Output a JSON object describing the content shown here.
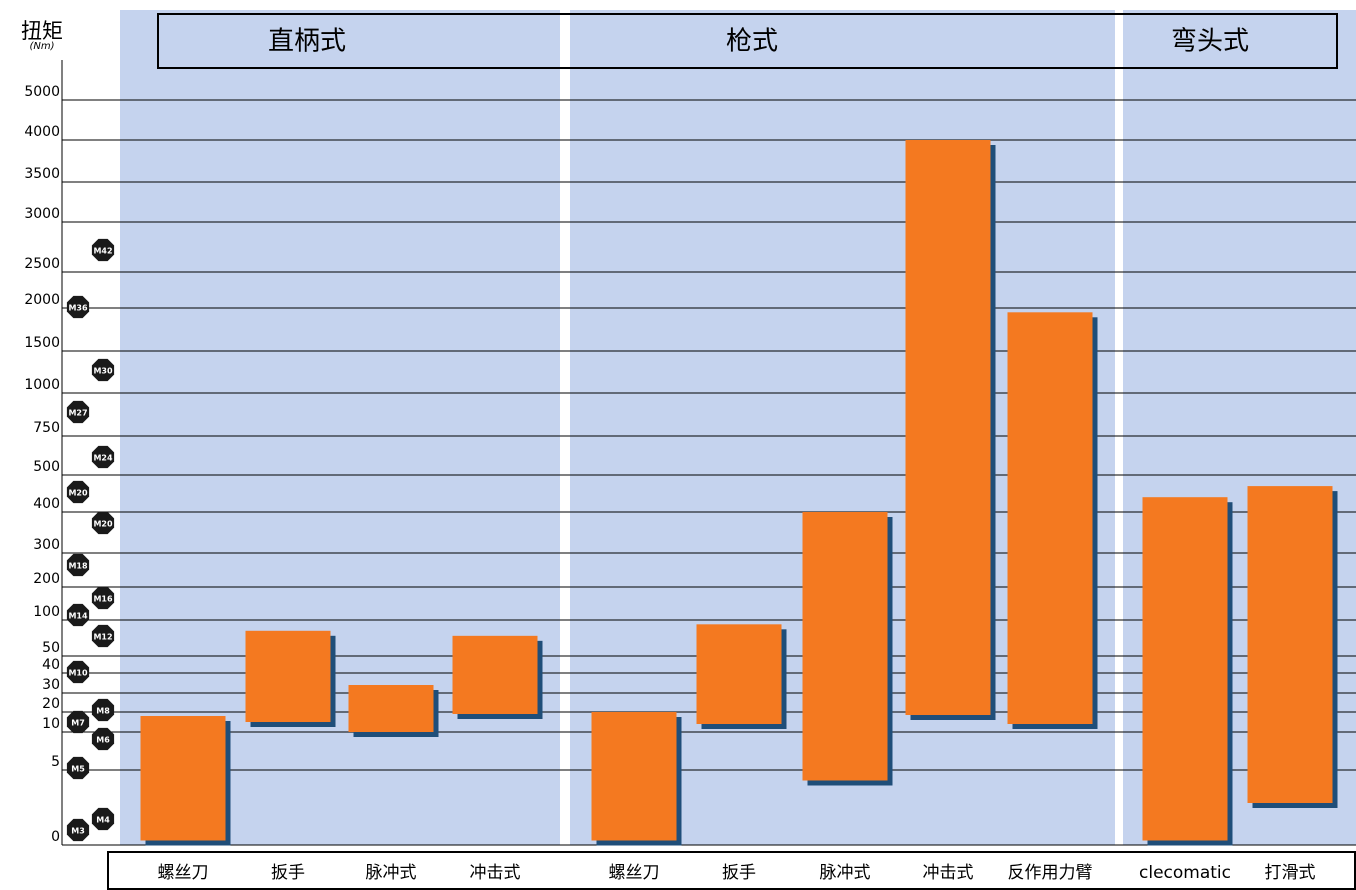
{
  "chart_data": {
    "type": "floating-bar",
    "y_label": "扭矩",
    "y_unit": "(Nm)",
    "groups": [
      "直柄式",
      "枪式",
      "弯头式"
    ],
    "categories": [
      "螺丝刀",
      "扳手",
      "脉冲式",
      "冲击式",
      "螺丝刀",
      "扳手",
      "脉冲式",
      "冲击式",
      "反作用力臂",
      "clecomatic",
      "打滑式"
    ],
    "values": [
      [
        0.3,
        18
      ],
      [
        15,
        85
      ],
      [
        10,
        34
      ],
      [
        19,
        78
      ],
      [
        0.3,
        20
      ],
      [
        14,
        94
      ],
      [
        4.3,
        400
      ],
      [
        18.5,
        4000
      ],
      [
        14,
        1950
      ],
      [
        0.3,
        440
      ],
      [
        2.8,
        470
      ]
    ],
    "color": "#f47920",
    "shadow_color": "#1f4e79",
    "panel_color": "#c5d3ee",
    "ylim": [
      0,
      5000
    ],
    "yticks": [
      0,
      5,
      10,
      20,
      30,
      40,
      50,
      100,
      200,
      300,
      400,
      500,
      750,
      1000,
      1500,
      2000,
      2500,
      3000,
      3500,
      4000,
      5000
    ],
    "grid": true,
    "nut_labels": [
      "M42",
      "M36",
      "M30",
      "M27",
      "M24",
      "M20",
      "M20",
      "M18",
      "M16",
      "M14",
      "M12",
      "M10",
      "M8",
      "M7",
      "M6",
      "M5",
      "M4",
      "M3"
    ]
  }
}
